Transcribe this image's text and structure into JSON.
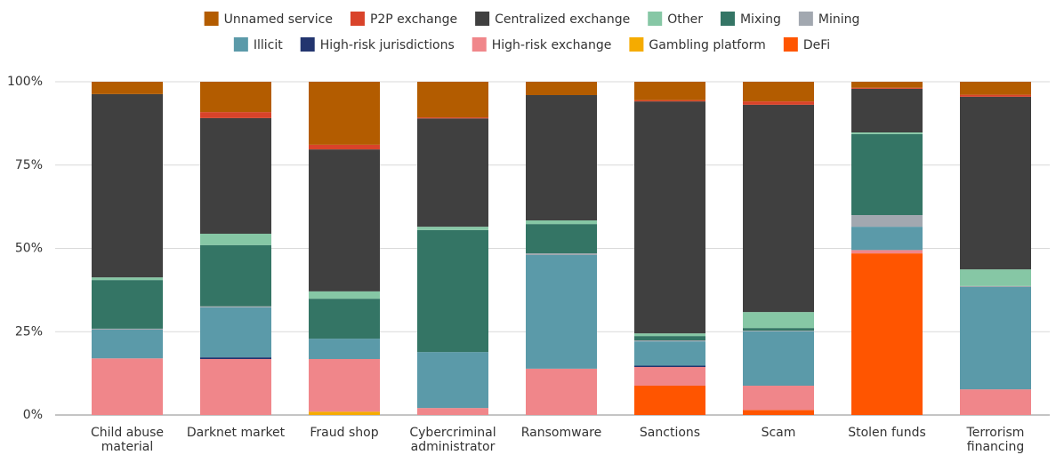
{
  "chart_data": {
    "type": "stacked_bar",
    "categories": [
      "Child abuse material",
      "Darknet market",
      "Fraud shop",
      "Cybercriminal administrator",
      "Ransomware",
      "Sanctions",
      "Scam",
      "Stolen funds",
      "Terrorism financing"
    ],
    "series": [
      {
        "name": "Unnamed service",
        "color": "#b35c00",
        "values": [
          3.7,
          9.1,
          18.9,
          10.7,
          4,
          5.5,
          5.9,
          1.8,
          3.9
        ]
      },
      {
        "name": "P2P exchange",
        "color": "#d9432a",
        "values": [
          0,
          1.8,
          1.4,
          0.3,
          0,
          0.4,
          1,
          0.3,
          0.6
        ]
      },
      {
        "name": "Centralized exchange",
        "color": "#404040",
        "values": [
          55,
          34.7,
          42.6,
          32.5,
          37.6,
          69.6,
          62.2,
          13.1,
          51.8
        ]
      },
      {
        "name": "Other",
        "color": "#86c7a5",
        "values": [
          0.8,
          3.4,
          2.2,
          1,
          1.1,
          0.8,
          4.8,
          0.5,
          5
        ]
      },
      {
        "name": "Mixing",
        "color": "#347565",
        "values": [
          14.6,
          18.4,
          12,
          36.6,
          8.8,
          1.3,
          0.8,
          24.3,
          0
        ]
      },
      {
        "name": "Mining",
        "color": "#a2a8b0",
        "values": [
          0.3,
          0.3,
          0,
          0,
          0.5,
          0.3,
          0.2,
          3.5,
          0.3
        ]
      },
      {
        "name": "Illicit",
        "color": "#5b9aa9",
        "values": [
          8.6,
          15,
          6.1,
          16.8,
          34.1,
          7.3,
          16.3,
          7,
          30.7
        ]
      },
      {
        "name": "High-risk jurisdictions",
        "color": "#23356f",
        "values": [
          0,
          0.5,
          0,
          0,
          0,
          0.4,
          0,
          0,
          0
        ]
      },
      {
        "name": "High-risk exchange",
        "color": "#f0868a",
        "values": [
          17,
          16.8,
          15.8,
          2.1,
          13.9,
          5.6,
          7.3,
          1,
          7.7
        ]
      },
      {
        "name": "Gambling platform",
        "color": "#f5ab00",
        "values": [
          0,
          0,
          1,
          0,
          0,
          0,
          0,
          0,
          0
        ]
      },
      {
        "name": "DeFi",
        "color": "#ff5500",
        "values": [
          0,
          0,
          0,
          0,
          0,
          8.8,
          1.5,
          48.5,
          0
        ]
      }
    ],
    "ylim": [
      0,
      100
    ],
    "yticks": [
      {
        "value": 0,
        "label": "0%"
      },
      {
        "value": 25,
        "label": "25%"
      },
      {
        "value": 50,
        "label": "50%"
      },
      {
        "value": 75,
        "label": "75%"
      },
      {
        "value": 100,
        "label": "100%"
      }
    ],
    "grid": true
  }
}
